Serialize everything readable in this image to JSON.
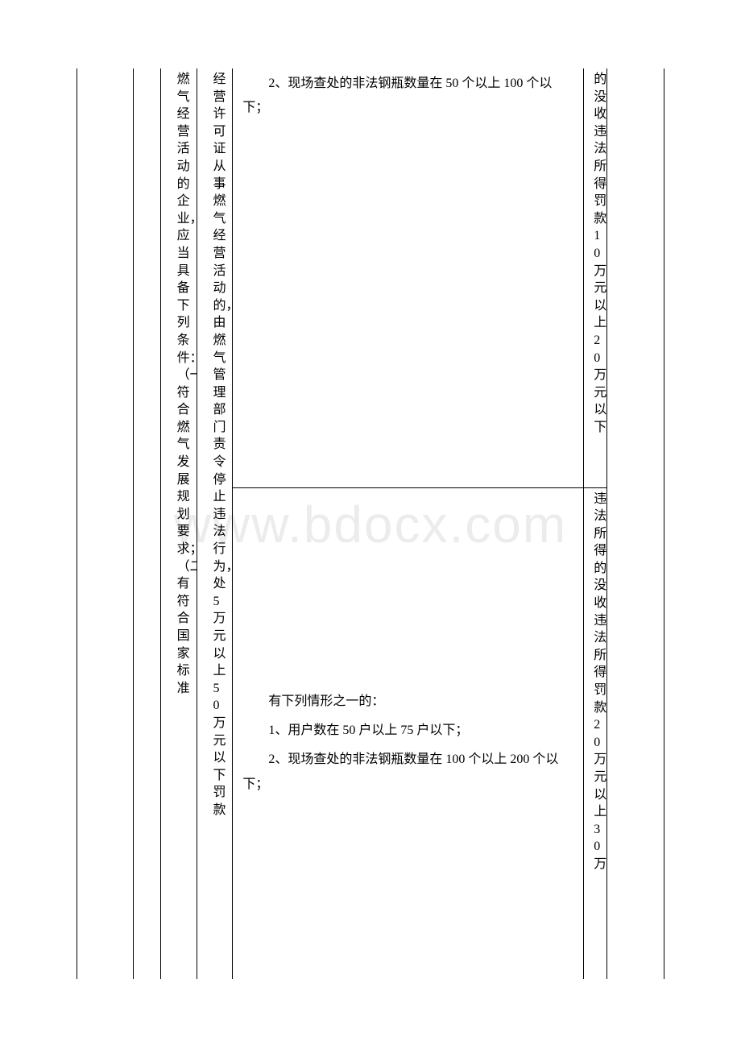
{
  "watermark": "www.bdocx.com",
  "column3_text": "燃气经营活动的企业，应当具备下列条件：　　（一）符合燃气发展规划要求；（二）有符合国家标准",
  "column4_text": "经营许可证从事燃气经营活动的，由燃气管理部门责令停止违法行为，处5万元以上50万元以下罚款",
  "row1_col5_line1": "2、现场查处的非法钢瓶数量在 50 个以上 100 个以下；",
  "row1_col6": "的，没收违法所得；罚款 10 万元以上 20 万元以下",
  "row2_col5_heading": "有下列情形之一的：",
  "row2_col5_line1": "1、用户数在 50 户以上 75 户以下；",
  "row2_col5_line2": "2、现场查处的非法钢瓶数量在 100 个以上 200 个以下；",
  "row2_col6": "违法所得的，没收违法所得；罚款 20 万元以上 30 万",
  "colors": {
    "text": "#000000",
    "border": "#000000",
    "background": "#ffffff",
    "watermark": "rgba(200,200,200,0.35)"
  },
  "fontsize_body": 16,
  "fontsize_watermark": 64
}
